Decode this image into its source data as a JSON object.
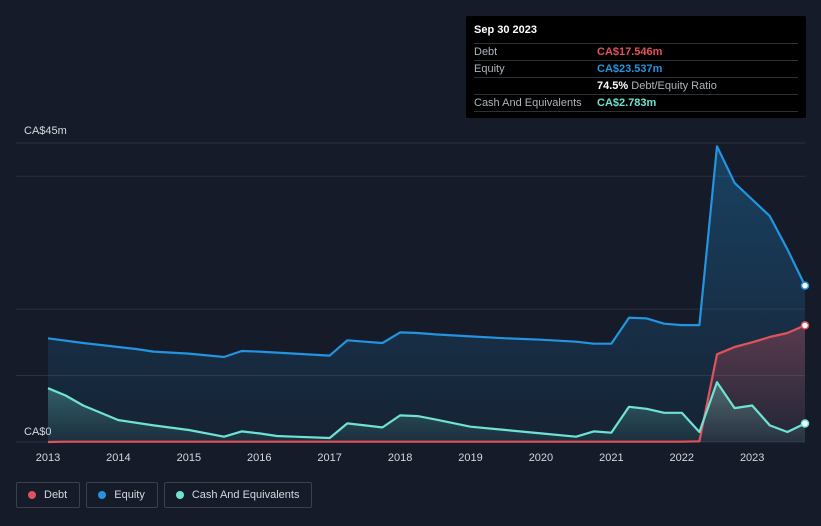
{
  "tooltip": {
    "date": "Sep 30 2023",
    "rows": [
      {
        "label": "Debt",
        "value": "CA$17.546m",
        "color": "#e2525b"
      },
      {
        "label": "Equity",
        "value": "CA$23.537m",
        "color": "#2394df"
      },
      {
        "label": "",
        "value": "74.5%",
        "suffix": "Debt/Equity Ratio",
        "color": "#ffffff"
      },
      {
        "label": "Cash And Equivalents",
        "value": "CA$2.783m",
        "color": "#6fe2d1"
      }
    ]
  },
  "legend": [
    {
      "label": "Debt",
      "color": "#e2525b"
    },
    {
      "label": "Equity",
      "color": "#2394df"
    },
    {
      "label": "Cash And Equivalents",
      "color": "#6fe2d1"
    }
  ],
  "chart_data": {
    "type": "area",
    "title": "",
    "xlabel": "",
    "ylabel": "",
    "y_tick_labels": [
      "CA$0",
      "CA$45m"
    ],
    "ylim": [
      0,
      45
    ],
    "xlim": [
      2013.0,
      2023.75
    ],
    "x_tick_labels": [
      "2013",
      "2014",
      "2015",
      "2016",
      "2017",
      "2018",
      "2019",
      "2020",
      "2021",
      "2022",
      "2023"
    ],
    "grid": true,
    "legend_position": "bottom-left",
    "series": [
      {
        "name": "Equity",
        "color": "#2394df",
        "x": [
          2013.0,
          2013.5,
          2014.0,
          2014.25,
          2014.5,
          2015.0,
          2015.5,
          2015.75,
          2016.0,
          2016.5,
          2017.0,
          2017.25,
          2017.5,
          2017.75,
          2018.0,
          2018.25,
          2018.5,
          2019.0,
          2019.5,
          2020.0,
          2020.5,
          2020.75,
          2021.0,
          2021.25,
          2021.5,
          2021.75,
          2022.0,
          2022.25,
          2022.5,
          2022.75,
          2023.0,
          2023.25,
          2023.5,
          2023.75
        ],
        "values": [
          15.6,
          14.9,
          14.3,
          14.0,
          13.6,
          13.3,
          12.8,
          13.7,
          13.6,
          13.3,
          13.0,
          15.3,
          15.1,
          14.9,
          16.5,
          16.4,
          16.2,
          15.9,
          15.6,
          15.4,
          15.1,
          14.8,
          14.8,
          18.7,
          18.6,
          17.8,
          17.6,
          17.6,
          44.5,
          39.0,
          36.5,
          34.0,
          29.0,
          23.537
        ]
      },
      {
        "name": "Debt",
        "color": "#e2525b",
        "x": [
          2013.0,
          2013.25,
          2014.0,
          2015.0,
          2016.0,
          2017.0,
          2018.0,
          2019.0,
          2020.0,
          2021.0,
          2022.0,
          2022.25,
          2022.5,
          2022.75,
          2023.0,
          2023.25,
          2023.5,
          2023.75
        ],
        "values": [
          0,
          0.05,
          0.05,
          0.05,
          0.05,
          0.05,
          0.05,
          0.05,
          0.05,
          0.05,
          0.05,
          0.1,
          13.2,
          14.3,
          15.0,
          15.8,
          16.4,
          17.546
        ]
      },
      {
        "name": "Cash And Equivalents",
        "color": "#6fe2d1",
        "x": [
          2013.0,
          2013.25,
          2013.5,
          2014.0,
          2014.5,
          2015.0,
          2015.5,
          2015.75,
          2016.0,
          2016.25,
          2016.5,
          2017.0,
          2017.25,
          2017.5,
          2017.75,
          2018.0,
          2018.25,
          2018.5,
          2019.0,
          2019.5,
          2020.0,
          2020.5,
          2020.75,
          2021.0,
          2021.25,
          2021.5,
          2021.75,
          2022.0,
          2022.25,
          2022.5,
          2022.75,
          2023.0,
          2023.25,
          2023.5,
          2023.75
        ],
        "values": [
          8.1,
          7.0,
          5.5,
          3.3,
          2.5,
          1.8,
          0.8,
          1.6,
          1.3,
          0.9,
          0.8,
          0.6,
          2.8,
          2.5,
          2.2,
          4.0,
          3.9,
          3.4,
          2.3,
          1.8,
          1.3,
          0.8,
          1.6,
          1.4,
          5.3,
          5.0,
          4.4,
          4.4,
          1.5,
          9.0,
          5.1,
          5.5,
          2.5,
          1.5,
          2.783
        ]
      }
    ]
  }
}
